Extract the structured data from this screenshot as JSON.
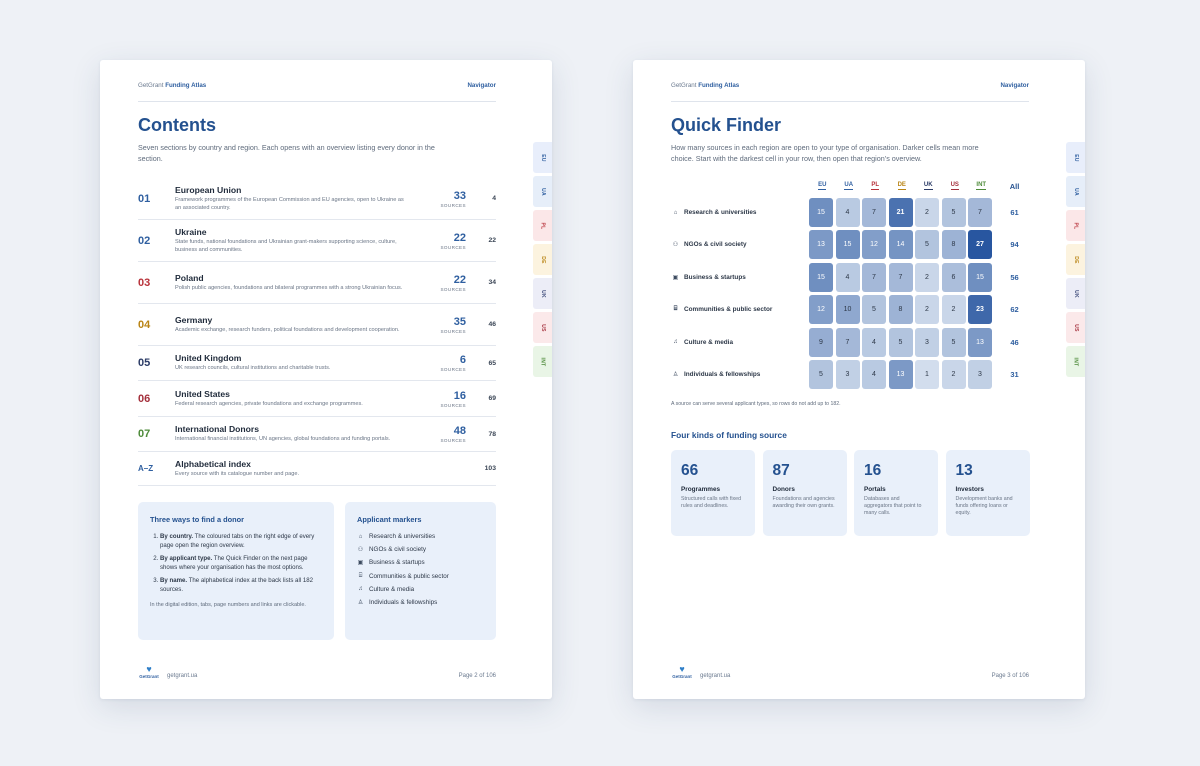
{
  "header": {
    "brand_prefix": "GetGrant",
    "brand_name": "Funding Atlas",
    "nav": "Navigator"
  },
  "tabs": [
    {
      "label": "EU",
      "bg": "#e8eefb",
      "fg": "#2f5fa0"
    },
    {
      "label": "UA",
      "bg": "#e6eef9",
      "fg": "#2f5fa0"
    },
    {
      "label": "PL",
      "bg": "#fbe7e8",
      "fg": "#b8323a"
    },
    {
      "label": "DE",
      "bg": "#fcf3df",
      "fg": "#b98414"
    },
    {
      "label": "UK",
      "bg": "#ecedf7",
      "fg": "#3d4a7a"
    },
    {
      "label": "US",
      "bg": "#fbe9ea",
      "fg": "#a4303c"
    },
    {
      "label": "INT",
      "bg": "#e9f5e6",
      "fg": "#4e8b3a"
    }
  ],
  "left": {
    "title": "Contents",
    "intro": "Seven sections by country and region. Each opens with an overview listing every donor in the section.",
    "sources_label": "SOURCES",
    "rows": [
      {
        "num": "01",
        "color": "#2f5fa0",
        "title": "European Union",
        "desc": "Framework programmes of the European Commission and EU agencies, open to Ukraine as an associated country.",
        "count": "33",
        "page": "4"
      },
      {
        "num": "02",
        "color": "#2f5fa0",
        "title": "Ukraine",
        "desc": "State funds, national foundations and Ukrainian grant-makers supporting science, culture, business and communities.",
        "count": "22",
        "page": "22"
      },
      {
        "num": "03",
        "color": "#b8323a",
        "title": "Poland",
        "desc": "Polish public agencies, foundations and bilateral programmes with a strong Ukrainian focus.",
        "count": "22",
        "page": "34"
      },
      {
        "num": "04",
        "color": "#b98414",
        "title": "Germany",
        "desc": "Academic exchange, research funders, political foundations and development cooperation.",
        "count": "35",
        "page": "46"
      },
      {
        "num": "05",
        "color": "#2b3b66",
        "title": "United Kingdom",
        "desc": "UK research councils, cultural institutions and charitable trusts.",
        "count": "6",
        "page": "65"
      },
      {
        "num": "06",
        "color": "#a4303c",
        "title": "United States",
        "desc": "Federal research agencies, private foundations and exchange programmes.",
        "count": "16",
        "page": "69"
      },
      {
        "num": "07",
        "color": "#4e8b3a",
        "title": "International Donors",
        "desc": "International financial institutions, UN agencies, global foundations and funding portals.",
        "count": "48",
        "page": "78"
      },
      {
        "num": "A–Z",
        "color": "#2f5fa0",
        "title": "Alphabetical index",
        "desc": "Every source with its catalogue number and page.",
        "count": "",
        "page": "103"
      }
    ],
    "ways": {
      "title": "Three ways to find a donor",
      "items": [
        {
          "bold": "By country.",
          "text": " The coloured tabs on the right edge of every page open the region overview."
        },
        {
          "bold": "By applicant type.",
          "text": " The Quick Finder on the next page shows where your organisation has the most options."
        },
        {
          "bold": "By name.",
          "text": " The alphabetical index at the back lists all 182 sources."
        }
      ],
      "note": "In the digital edition, tabs, page numbers and links are clickable."
    },
    "markers": {
      "title": "Applicant markers",
      "items": [
        {
          "icon": "graduation-cap-icon",
          "glyph": "⌂",
          "label": "Research & universities"
        },
        {
          "icon": "people-icon",
          "glyph": "⚇",
          "label": "NGOs & civil society"
        },
        {
          "icon": "briefcase-icon",
          "glyph": "▣",
          "label": "Business & startups"
        },
        {
          "icon": "building-icon",
          "glyph": "⌸",
          "label": "Communities & public sector"
        },
        {
          "icon": "music-note-icon",
          "glyph": "♫",
          "label": "Culture & media"
        },
        {
          "icon": "person-icon",
          "glyph": "♙",
          "label": "Individuals & fellowships"
        }
      ]
    },
    "footer": {
      "logo": "GetGrant",
      "site": "getgrant.ua",
      "page": "Page 2 of 106"
    }
  },
  "right": {
    "title": "Quick Finder",
    "intro": "How many sources in each region are open to your type of organisation. Darker cells mean more choice. Start with the darkest cell in your row, then open that region’s overview.",
    "columns": [
      {
        "label": "EU",
        "color": "#2f5fa0"
      },
      {
        "label": "UA",
        "color": "#2f5fa0"
      },
      {
        "label": "PL",
        "color": "#b8323a"
      },
      {
        "label": "DE",
        "color": "#b98414"
      },
      {
        "label": "UK",
        "color": "#2b3b66"
      },
      {
        "label": "US",
        "color": "#a4303c"
      },
      {
        "label": "INT",
        "color": "#4e8b3a"
      }
    ],
    "all_label": "All",
    "rows": [
      {
        "icon": "graduation-cap-icon",
        "glyph": "⌂",
        "label": "Research & universities",
        "values": [
          15,
          4,
          7,
          21,
          2,
          5,
          7
        ],
        "total": "61"
      },
      {
        "icon": "people-icon",
        "glyph": "⚇",
        "label": "NGOs & civil society",
        "values": [
          13,
          15,
          12,
          14,
          5,
          8,
          27
        ],
        "total": "94"
      },
      {
        "icon": "briefcase-icon",
        "glyph": "▣",
        "label": "Business & startups",
        "values": [
          15,
          4,
          7,
          7,
          2,
          6,
          15
        ],
        "total": "56"
      },
      {
        "icon": "building-icon",
        "glyph": "⌸",
        "label": "Communities & public sector",
        "values": [
          12,
          10,
          5,
          8,
          2,
          2,
          23
        ],
        "total": "62"
      },
      {
        "icon": "music-note-icon",
        "glyph": "♫",
        "label": "Culture & media",
        "values": [
          9,
          7,
          4,
          5,
          3,
          5,
          13
        ],
        "total": "46"
      },
      {
        "icon": "person-icon",
        "glyph": "♙",
        "label": "Individuals & fellowships",
        "values": [
          5,
          3,
          4,
          13,
          1,
          2,
          3
        ],
        "total": "31"
      }
    ],
    "note": "A source can serve several applicant types, so rows do not add up to 182.",
    "kinds_title": "Four kinds of funding source",
    "cards": [
      {
        "num": "66",
        "title": "Programmes",
        "desc": "Structured calls with fixed rules and deadlines."
      },
      {
        "num": "87",
        "title": "Donors",
        "desc": "Foundations and agencies awarding their own grants."
      },
      {
        "num": "16",
        "title": "Portals",
        "desc": "Databases and aggregators that point to many calls."
      },
      {
        "num": "13",
        "title": "Investors",
        "desc": "Development banks and funds offering loans or equity."
      }
    ],
    "footer": {
      "logo": "GetGrant",
      "site": "getgrant.ua",
      "page": "Page 3 of 106"
    }
  }
}
